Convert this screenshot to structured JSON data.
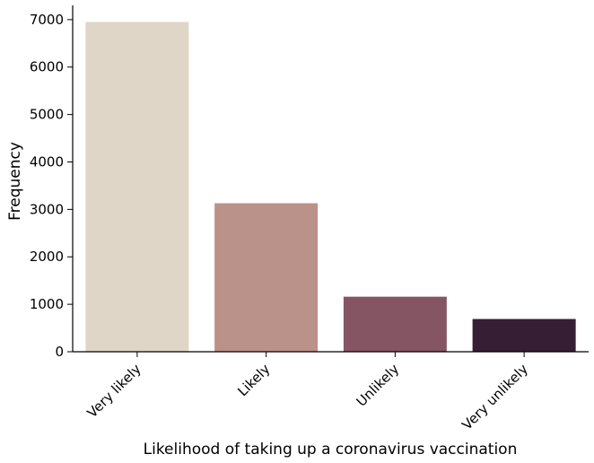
{
  "chart_data": {
    "type": "bar",
    "title": "",
    "xlabel": "Likelihood of taking up a coronavirus vaccination",
    "ylabel": "Frequency",
    "categories": [
      "Very likely",
      "Likely",
      "Unlikely",
      "Very unlikely"
    ],
    "values": [
      6950,
      3130,
      1160,
      690
    ],
    "colors": [
      "#e0d6c7",
      "#ba928a",
      "#865564",
      "#361f34"
    ],
    "ylim": [
      0,
      7300
    ],
    "yticks": [
      0,
      1000,
      2000,
      3000,
      4000,
      5000,
      6000,
      7000
    ],
    "ytick_labels": [
      "0",
      "1000",
      "2000",
      "3000",
      "4000",
      "5000",
      "6000",
      "7000"
    ],
    "grid": false,
    "legend": "none"
  }
}
